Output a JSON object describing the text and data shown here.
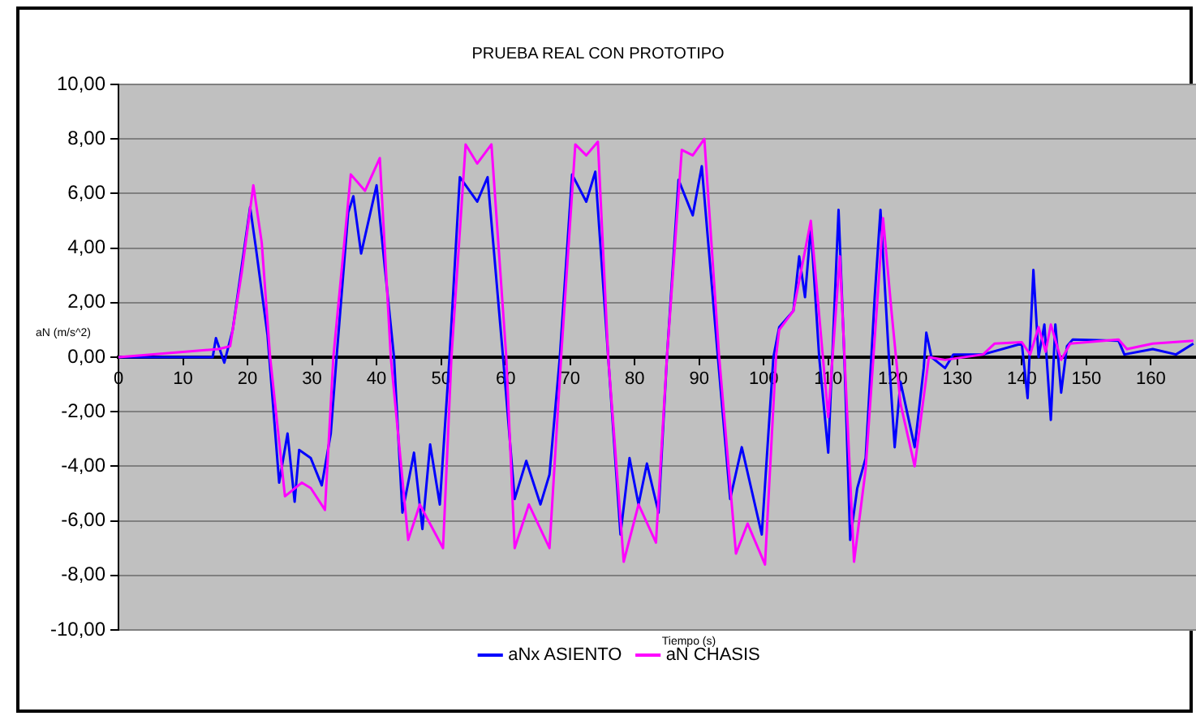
{
  "chart_data": {
    "type": "line",
    "title": "PRUEBA REAL CON PROTOTIPO",
    "xlabel": "Tiempo (s)",
    "ylabel": "aN (m/s^2)",
    "xlim": [
      0,
      167
    ],
    "xticks": [
      0,
      10,
      20,
      30,
      40,
      50,
      60,
      70,
      80,
      90,
      100,
      110,
      120,
      130,
      140,
      150,
      160
    ],
    "ylim": [
      -10,
      10
    ],
    "yticks": [
      {
        "value": -10,
        "label": "-10,00"
      },
      {
        "value": -8,
        "label": "-8,00"
      },
      {
        "value": -6,
        "label": "-6,00"
      },
      {
        "value": -4,
        "label": "-4,00"
      },
      {
        "value": -2,
        "label": "-2,00"
      },
      {
        "value": 0,
        "label": "0,00"
      },
      {
        "value": 2,
        "label": "2,00"
      },
      {
        "value": 4,
        "label": "4,00"
      },
      {
        "value": 6,
        "label": "6,00"
      },
      {
        "value": 8,
        "label": "8,00"
      },
      {
        "value": 10,
        "label": "10,00"
      }
    ],
    "grid": "y",
    "legend": "bottom",
    "marker": "none",
    "line_style": "solid",
    "series": [
      {
        "name": "aNx ASIENTO",
        "color": "#0000ff",
        "x": [
          0,
          14.6,
          15.1,
          16.4,
          17.7,
          18.6,
          20.4,
          21.3,
          23.1,
          24.9,
          26.2,
          27.3,
          28,
          29.8,
          31.5,
          32.9,
          33.8,
          35.6,
          36.4,
          37.6,
          40,
          41.4,
          42.7,
          44,
          45.8,
          47.1,
          48.3,
          49.8,
          51.3,
          52.9,
          55.6,
          57.2,
          59.6,
          61.4,
          63.2,
          65.4,
          66.8,
          68.4,
          70.3,
          72.5,
          73.9,
          75.9,
          77.8,
          79.2,
          80.6,
          81.9,
          83.7,
          85,
          86.8,
          89,
          90.4,
          92.9,
          94.8,
          96.6,
          99.7,
          101.5,
          102.4,
          104.6,
          105.5,
          106.4,
          107.3,
          108.6,
          110,
          111.6,
          112.5,
          113.4,
          114.5,
          115.8,
          117.2,
          118.1,
          119.4,
          120.3,
          121.2,
          123.4,
          124.8,
          125.2,
          126,
          128.1,
          129.4,
          134,
          140,
          140.9,
          141.8,
          142.6,
          143.5,
          144.5,
          145.2,
          146.1,
          147,
          147.9,
          155,
          155.9,
          160.3,
          163.9,
          166.6
        ],
        "values": [
          0,
          0,
          0.7,
          -0.2,
          1,
          2.5,
          5.5,
          4,
          0.8,
          -4.6,
          -2.8,
          -5.3,
          -3.4,
          -3.7,
          -4.7,
          -2.8,
          0,
          5.3,
          5.9,
          3.8,
          6.3,
          3,
          0,
          -5.7,
          -3.5,
          -6.3,
          -3.2,
          -5.4,
          0,
          6.6,
          5.7,
          6.6,
          0,
          -5.2,
          -3.8,
          -5.4,
          -4.3,
          0,
          6.7,
          5.7,
          6.8,
          0,
          -6.5,
          -3.7,
          -5.4,
          -3.9,
          -5.7,
          0,
          6.5,
          5.2,
          7,
          0,
          -5.2,
          -3.3,
          -6.5,
          0,
          1.1,
          1.7,
          3.7,
          2.2,
          4.8,
          0,
          -3.5,
          5.4,
          0,
          -6.7,
          -4.8,
          -3.7,
          2.2,
          5.4,
          0,
          -3.3,
          -0.9,
          -3.3,
          -0.4,
          0.9,
          0,
          -0.4,
          0.1,
          0.1,
          0.5,
          -1.5,
          3.2,
          0,
          1.2,
          -2.3,
          1.2,
          -1.3,
          0.4,
          0.65,
          0.6,
          0.1,
          0.3,
          0.1,
          0.5
        ]
      },
      {
        "name": "aN CHASIS",
        "color": "#ff00ff",
        "x": [
          0,
          15.5,
          17.3,
          19.1,
          20.9,
          22.2,
          23.5,
          25.8,
          28.4,
          29.8,
          32,
          33.3,
          36,
          38.2,
          40.5,
          42.2,
          44.9,
          46.7,
          50.3,
          51.6,
          53.8,
          55.6,
          57.8,
          60.1,
          61.4,
          63.6,
          66.8,
          68.6,
          70.8,
          72.5,
          74.3,
          75.9,
          78.3,
          80.6,
          83.3,
          85,
          87.3,
          89,
          90.8,
          93.1,
          95.7,
          97.5,
          100.2,
          101.9,
          102.4,
          104.6,
          107.3,
          110,
          111.8,
          114,
          115.8,
          118.5,
          119.8,
          121.2,
          123.4,
          125.6,
          128.1,
          134,
          135.8,
          140,
          141.3,
          142.6,
          143.7,
          144.5,
          146.1,
          147.5,
          155,
          156.3,
          160.3,
          166.6
        ],
        "values": [
          0,
          0.3,
          0.4,
          3.1,
          6.3,
          4.2,
          0,
          -5.1,
          -4.6,
          -4.8,
          -5.6,
          0,
          6.7,
          6.1,
          7.3,
          0,
          -6.7,
          -5.4,
          -7,
          0,
          7.8,
          7.1,
          7.8,
          0,
          -7,
          -5.4,
          -7,
          0,
          7.8,
          7.4,
          7.9,
          0,
          -7.5,
          -5.4,
          -6.8,
          0,
          7.6,
          7.4,
          8,
          0,
          -7.2,
          -6.1,
          -7.6,
          0,
          1,
          1.7,
          5,
          -2.2,
          3.7,
          -7.5,
          -4.1,
          5.1,
          1.7,
          -1.7,
          -4,
          0,
          -0.1,
          0.1,
          0.5,
          0.55,
          0.1,
          1.1,
          0.2,
          1.2,
          -0.1,
          0.5,
          0.65,
          0.3,
          0.5,
          0.6
        ]
      }
    ]
  }
}
